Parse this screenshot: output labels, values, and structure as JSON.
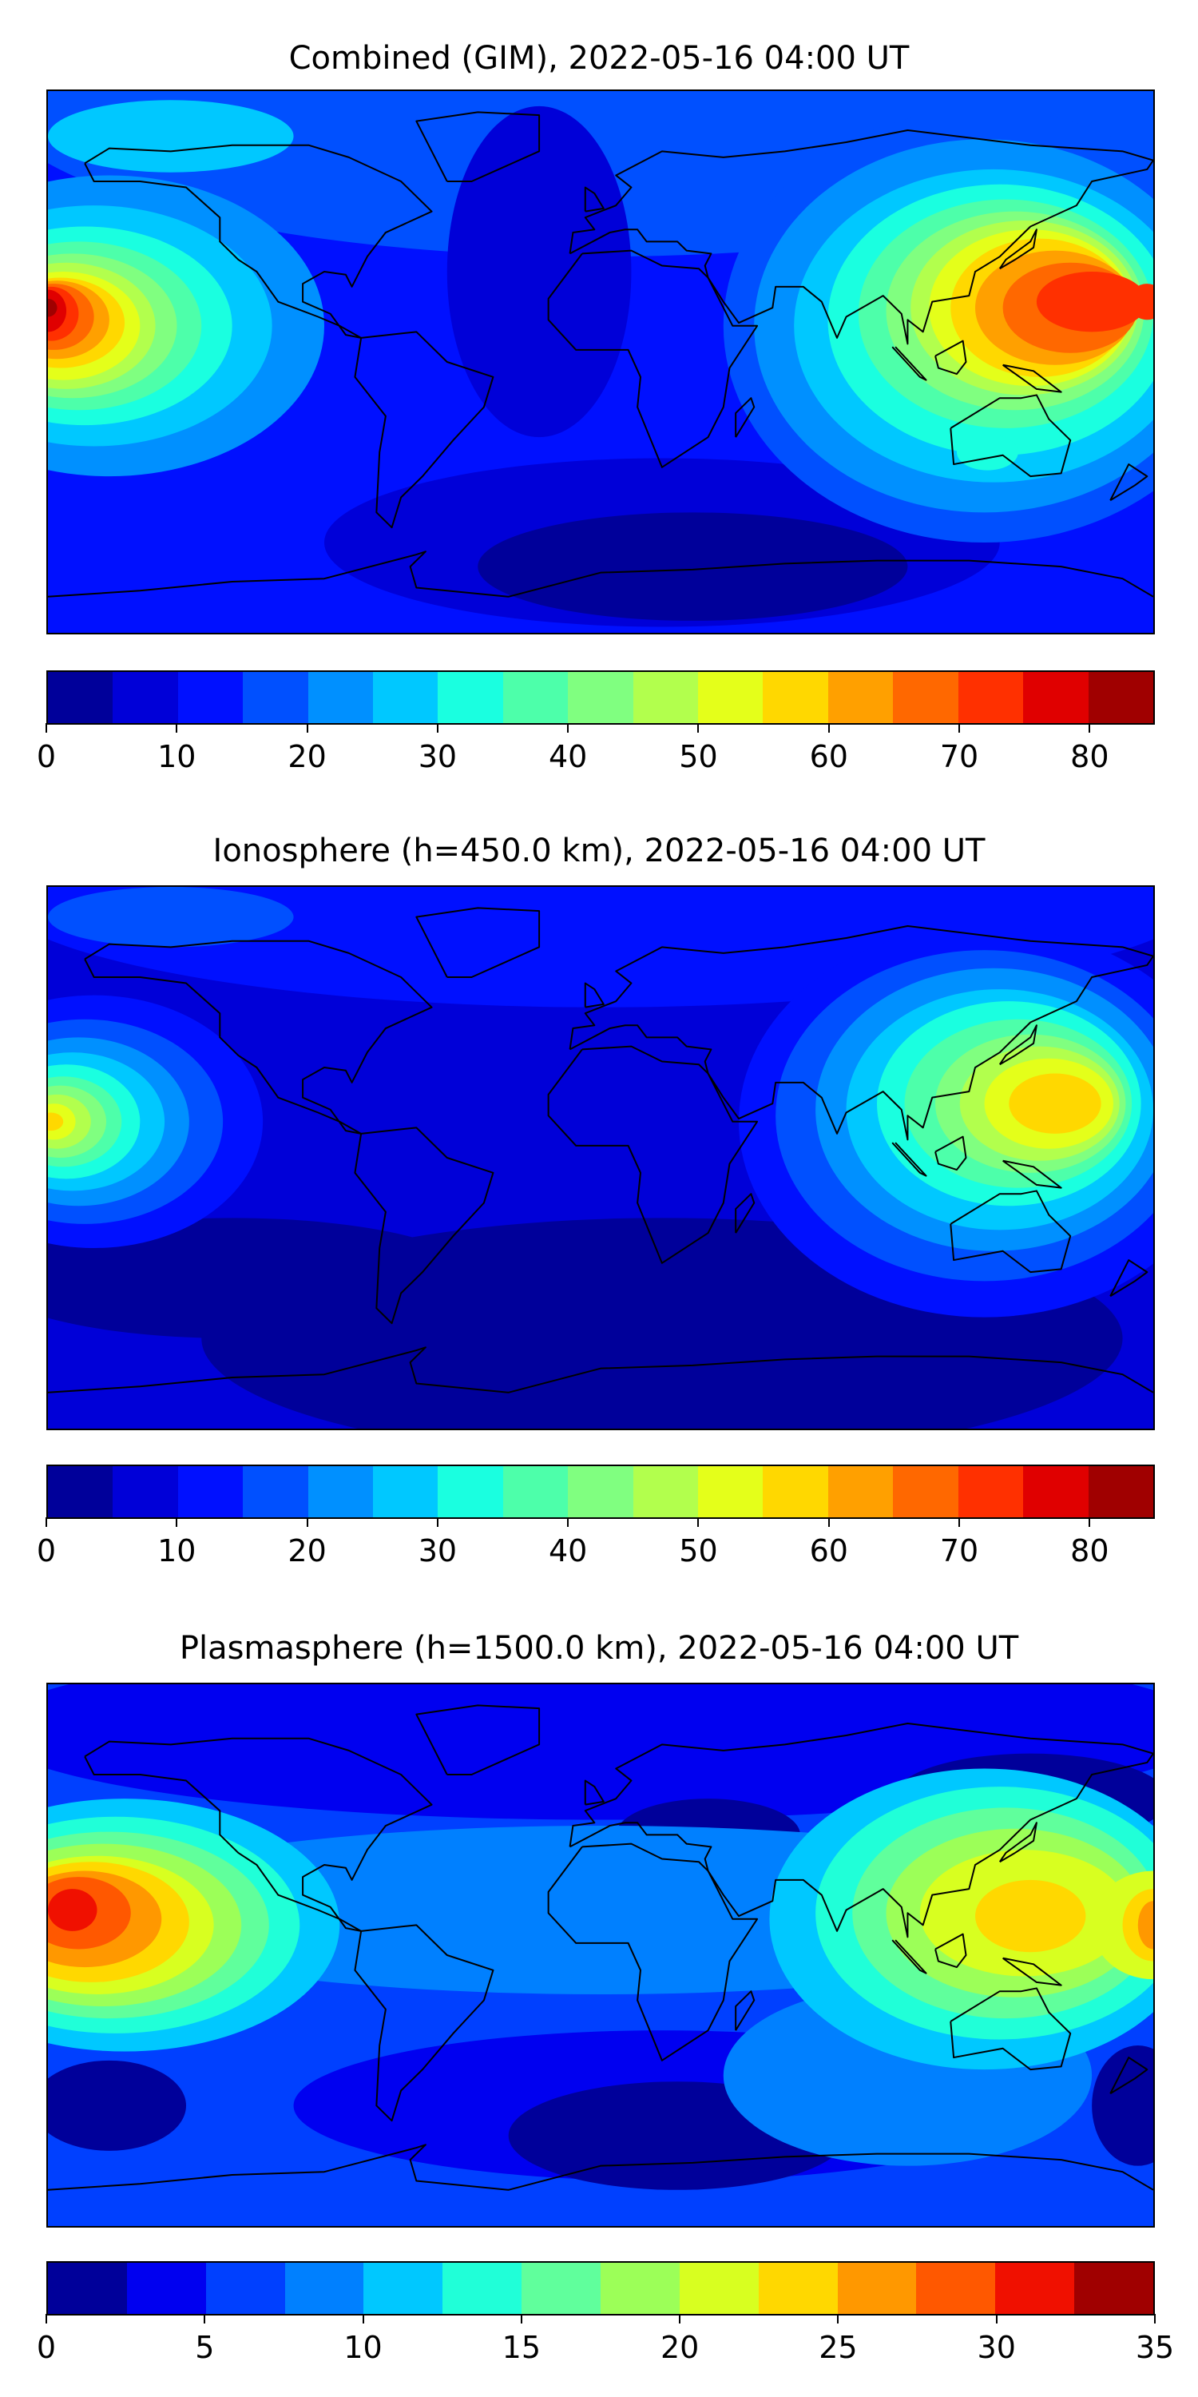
{
  "chart_data": [
    {
      "type": "heatmap",
      "title": "Combined (GIM), 2022-05-16 04:00 UT",
      "projection": "global lon -180..180, lat -90..90",
      "colorbar": {
        "min": 0,
        "max": 85,
        "step": 5,
        "ticks": [
          "0",
          "10",
          "20",
          "30",
          "40",
          "50",
          "60",
          "70",
          "80"
        ],
        "tick_values": [
          0,
          10,
          20,
          30,
          40,
          50,
          60,
          70,
          80
        ],
        "colors": [
          "#00009a",
          "#0000d8",
          "#0010ff",
          "#0050ff",
          "#0090ff",
          "#00c8ff",
          "#1affe0",
          "#4dffaa",
          "#80ff80",
          "#b2ff4d",
          "#e4ff1a",
          "#ffd800",
          "#ffa000",
          "#ff6800",
          "#ff3000",
          "#e00000",
          "#a00000"
        ]
      },
      "features": {
        "max_west_pacific": "80-85",
        "max_southeast_asia": "70-75",
        "min_south_atlantic": "0-5"
      }
    },
    {
      "type": "heatmap",
      "title": "Ionosphere  (h=450.0 km), 2022-05-16 04:00 UT",
      "projection": "global lon -180..180, lat -90..90",
      "colorbar": {
        "min": 0,
        "max": 85,
        "step": 5,
        "ticks": [
          "0",
          "10",
          "20",
          "30",
          "40",
          "50",
          "60",
          "70",
          "80"
        ],
        "tick_values": [
          0,
          10,
          20,
          30,
          40,
          50,
          60,
          70,
          80
        ],
        "colors": [
          "#00009a",
          "#0000d8",
          "#0010ff",
          "#0050ff",
          "#0090ff",
          "#00c8ff",
          "#1affe0",
          "#4dffaa",
          "#80ff80",
          "#b2ff4d",
          "#e4ff1a",
          "#ffd800",
          "#ffa000",
          "#ff6800",
          "#ff3000",
          "#e00000",
          "#a00000"
        ]
      },
      "features": {
        "max_west_pacific": "55-60",
        "max_southeast_asia": "55-60",
        "min_south_atlantic": "0-5"
      }
    },
    {
      "type": "heatmap",
      "title": "Plasmasphere (h=1500.0 km), 2022-05-16 04:00 UT",
      "projection": "global lon -180..180, lat -90..90",
      "colorbar": {
        "min": 0,
        "max": 35,
        "step": 2.5,
        "ticks": [
          "0",
          "5",
          "10",
          "15",
          "20",
          "25",
          "30",
          "35"
        ],
        "tick_values": [
          0,
          5,
          10,
          15,
          20,
          25,
          30,
          35
        ],
        "colors": [
          "#00009a",
          "#0000f0",
          "#0040ff",
          "#0080ff",
          "#00c8ff",
          "#20ffd8",
          "#60ff9c",
          "#9cff58",
          "#d8ff20",
          "#ffd800",
          "#ff9800",
          "#ff5800",
          "#f01000",
          "#a00000"
        ]
      },
      "features": {
        "max_west_pacific": "30-32.5",
        "max_southeast_asia": "22.5-25",
        "min_south_pacific": "0-2.5"
      }
    }
  ]
}
